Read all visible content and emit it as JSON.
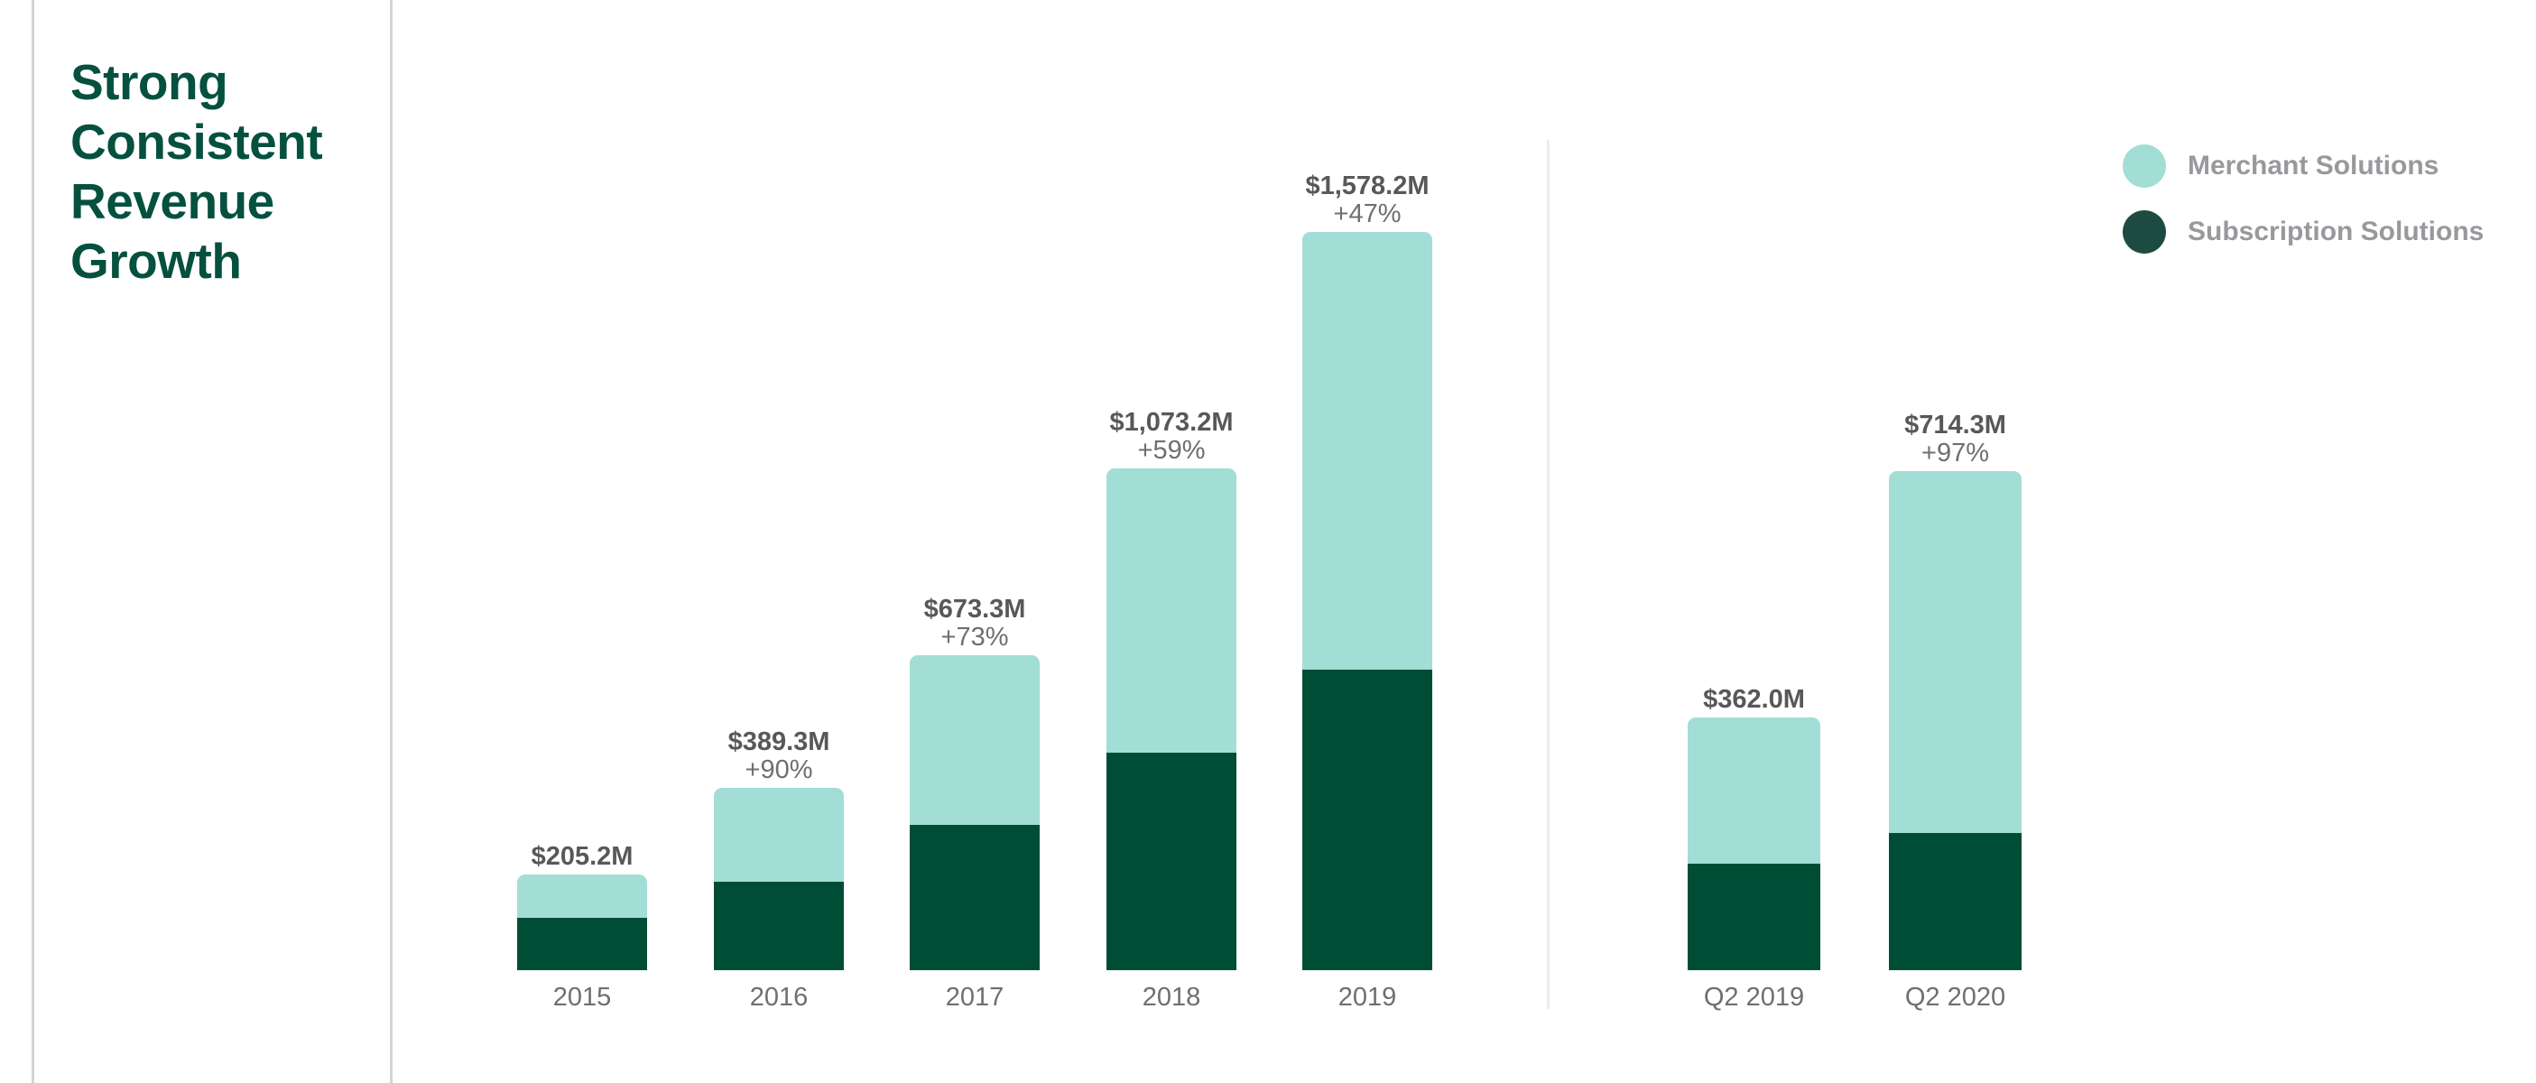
{
  "title": {
    "text": "Strong Consistent Revenue Growth",
    "color": "#05503f"
  },
  "legend": {
    "position": "top-right",
    "items": [
      {
        "label": "Merchant Solutions",
        "color": "#a2ded5"
      },
      {
        "label": "Subscription Solutions",
        "color": "#1e4b41"
      }
    ]
  },
  "colors": {
    "merchant_bar": "#a2ded5",
    "subscription_bar": "#004d36",
    "title_green": "#05503f",
    "value_label_gray": "#57585a",
    "secondary_gray": "#6e6f71",
    "legend_text_gray": "#97999c",
    "rule_line_gray": "#d4d4d4",
    "separator_line_gray": "#ececec"
  },
  "chart_data": {
    "type": "bar",
    "stacked": true,
    "title": "Strong Consistent Revenue Growth",
    "unit": "USD millions",
    "grid": false,
    "y_axis_visible": false,
    "legend_position": "top-right",
    "groups": [
      {
        "name": "annual-revenue",
        "categories": [
          "2015",
          "2016",
          "2017",
          "2018",
          "2019"
        ],
        "series": [
          {
            "name": "Subscription Solutions",
            "color": "#004d36",
            "values": [
              112,
              189,
              310,
              465,
              642
            ]
          },
          {
            "name": "Merchant Solutions",
            "color": "#a2ded5",
            "values": [
              93,
              200,
              363,
              608,
              936
            ]
          }
        ],
        "totals": [
          205.2,
          389.3,
          673.3,
          1073.2,
          1578.2
        ],
        "total_labels": [
          "$205.2M",
          "$389.3M",
          "$673.3M",
          "$1,073.2M",
          "$1,578.2M"
        ],
        "growth_labels": [
          "",
          "+90%",
          "+73%",
          "+59%",
          "+47%"
        ]
      },
      {
        "name": "q2-revenue",
        "categories": [
          "Q2 2019",
          "Q2 2020"
        ],
        "series": [
          {
            "name": "Subscription Solutions",
            "color": "#004d36",
            "values": [
              153,
              196
            ]
          },
          {
            "name": "Merchant Solutions",
            "color": "#a2ded5",
            "values": [
              209,
              518
            ]
          }
        ],
        "totals": [
          362.0,
          714.3
        ],
        "total_labels": [
          "$362.0M",
          "$714.3M"
        ],
        "growth_labels": [
          "",
          "+97%"
        ]
      }
    ]
  }
}
